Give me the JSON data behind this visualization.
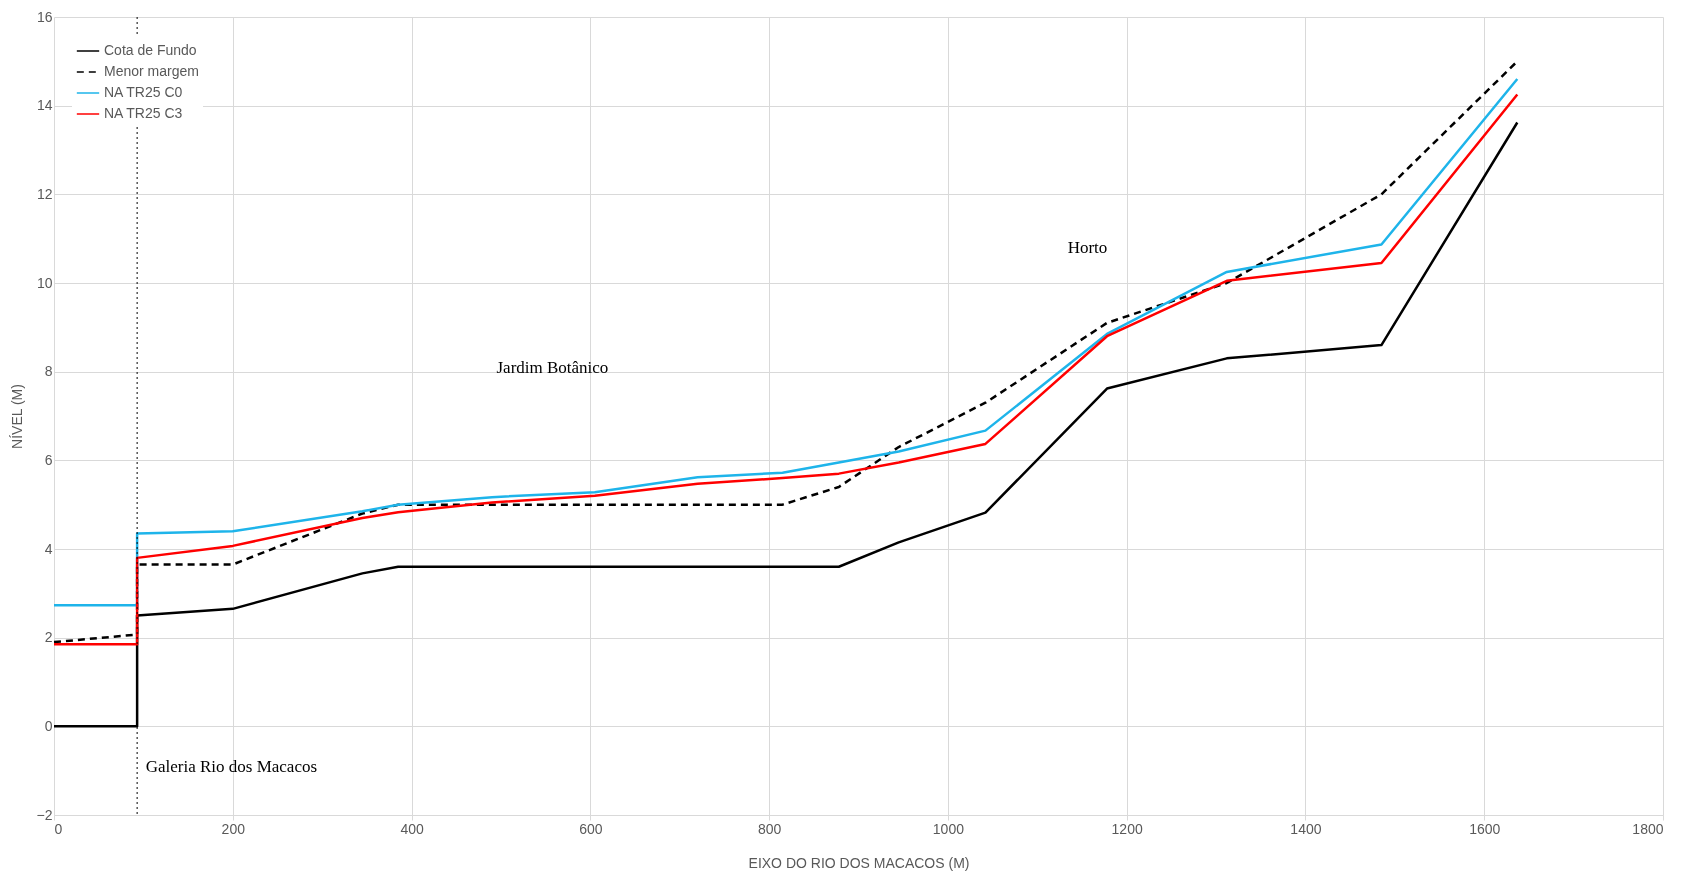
{
  "chart_data": {
    "type": "line",
    "xlabel": "EIXO DO RIO DOS MACACOS (M)",
    "ylabel": "NÍVEL (M)",
    "xlim": [
      0,
      1800
    ],
    "xticks": [
      0,
      200,
      400,
      600,
      800,
      1000,
      1200,
      1400,
      1600,
      1800
    ],
    "ylim": [
      -2,
      16
    ],
    "yticks": [
      -2,
      0,
      2,
      4,
      6,
      8,
      10,
      12,
      14,
      16
    ],
    "grid": true,
    "legend": "top left",
    "series": [
      {
        "name": "Cota de Fundo",
        "color": "#000000",
        "line_style": "solid",
        "x": [
          0,
          93,
          93,
          200,
          345,
          385,
          878,
          945,
          1042,
          1178,
          1312,
          1485,
          1637
        ],
        "values": [
          0,
          0,
          2.5,
          2.65,
          3.45,
          3.6,
          3.6,
          4.15,
          4.82,
          7.62,
          8.3,
          8.6,
          13.62
        ]
      },
      {
        "name": "Menor margem",
        "color": "#000000",
        "line_style": "dashed",
        "x": [
          0,
          93,
          93,
          200,
          345,
          385,
          815,
          878,
          945,
          1042,
          1178,
          1312,
          1485,
          1637
        ],
        "values": [
          1.9,
          2.07,
          3.65,
          3.65,
          4.8,
          5.0,
          5.0,
          5.4,
          6.3,
          7.3,
          9.1,
          10.0,
          12.0,
          15.0
        ]
      },
      {
        "name": "NA TR25 C0",
        "color": "#1eb4ea",
        "line_style": "solid",
        "x": [
          0,
          93,
          93,
          200,
          345,
          385,
          490,
          605,
          720,
          815,
          878,
          945,
          1042,
          1178,
          1312,
          1485,
          1637
        ],
        "values": [
          2.73,
          2.73,
          4.35,
          4.4,
          4.85,
          5.0,
          5.17,
          5.28,
          5.62,
          5.72,
          5.95,
          6.2,
          6.67,
          8.85,
          10.25,
          10.87,
          14.6
        ]
      },
      {
        "name": "NA TR25 C3",
        "color": "#ff0000",
        "line_style": "solid",
        "x": [
          0,
          93,
          93,
          200,
          345,
          385,
          490,
          605,
          720,
          815,
          878,
          945,
          1042,
          1178,
          1312,
          1485,
          1637
        ],
        "values": [
          1.85,
          1.85,
          3.8,
          4.07,
          4.7,
          4.83,
          5.05,
          5.2,
          5.47,
          5.6,
          5.7,
          5.95,
          6.37,
          8.8,
          10.05,
          10.45,
          14.25
        ]
      }
    ],
    "ref_lines": [
      {
        "axis": "x",
        "value": 93,
        "label": null,
        "color": "#000000",
        "line_style": "dotted"
      }
    ],
    "annotations": [
      "Galeria Rio dos Macacos",
      "Jardim Botânico",
      "Horto"
    ]
  }
}
